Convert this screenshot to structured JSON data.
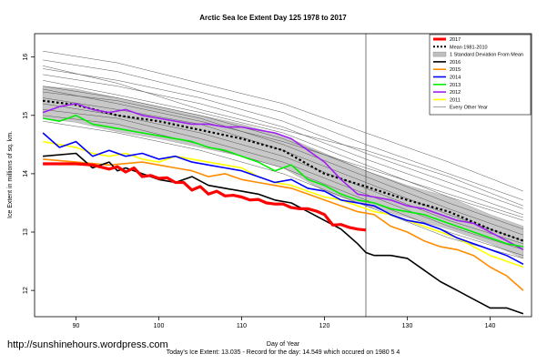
{
  "watermark": "http://sunshinehours.wordpress.com",
  "chart_data": {
    "type": "line",
    "title": "Arctic Sea Ice Extent Day 125 1978 to 2017",
    "xlabel": "Day of Year",
    "ylabel": "Ice Extent in millions of sq. km.",
    "footer": "Today's Ice Extent: 13.035 - Record for the day: 14.549 which occured on 1980 5 4",
    "xlim": [
      85,
      145
    ],
    "ylim": [
      11.55,
      16.4
    ],
    "xticks": [
      90,
      100,
      110,
      120,
      130,
      140
    ],
    "yticks": [
      12,
      13,
      14,
      15,
      16
    ],
    "vline_x": 125,
    "grid": false,
    "legend_position": "top-right",
    "legend": [
      {
        "label": "2017",
        "color": "#ff0000",
        "style": "thick"
      },
      {
        "label": "Mean 1981-2010",
        "color": "#000000",
        "style": "dotted"
      },
      {
        "label": "1 Standard Deviation From Mean",
        "color": "#bebebe",
        "style": "fill"
      },
      {
        "label": "2016",
        "color": "#000000",
        "style": "solid"
      },
      {
        "label": "2015",
        "color": "#ff8c00",
        "style": "solid"
      },
      {
        "label": "2014",
        "color": "#0000ff",
        "style": "solid"
      },
      {
        "label": "2013",
        "color": "#00ee00",
        "style": "solid"
      },
      {
        "label": "2012",
        "color": "#a020f0",
        "style": "solid"
      },
      {
        "label": "2011",
        "color": "#ffff00",
        "style": "solid"
      },
      {
        "label": "Every Other Year",
        "color": "#666666",
        "style": "thin"
      }
    ],
    "mean": {
      "x": [
        86,
        90,
        95,
        100,
        105,
        110,
        115,
        120,
        125,
        130,
        135,
        140,
        144
      ],
      "y": [
        15.25,
        15.18,
        15.0,
        14.9,
        14.75,
        14.6,
        14.4,
        14.0,
        13.78,
        13.55,
        13.35,
        13.05,
        12.85
      ]
    },
    "band": {
      "x": [
        86,
        90,
        95,
        100,
        105,
        110,
        115,
        120,
        125,
        130,
        135,
        140,
        144
      ],
      "upper": [
        15.5,
        15.45,
        15.3,
        15.15,
        15.0,
        14.85,
        14.65,
        14.35,
        14.05,
        13.8,
        13.6,
        13.3,
        13.1
      ],
      "lower": [
        14.95,
        14.88,
        14.72,
        14.6,
        14.45,
        14.3,
        14.1,
        13.7,
        13.45,
        13.25,
        13.05,
        12.8,
        12.55
      ]
    },
    "series": [
      {
        "name": "2017",
        "color": "#ff0000",
        "width": 3.2,
        "x": [
          86,
          88,
          90,
          92,
          94,
          95,
          96,
          97,
          98,
          99,
          100,
          101,
          102,
          103,
          104,
          105,
          106,
          107,
          108,
          109,
          110,
          111,
          112,
          113,
          114,
          115,
          116,
          117,
          118,
          119,
          120,
          121,
          122,
          123,
          124,
          125
        ],
        "y": [
          14.17,
          14.17,
          14.17,
          14.15,
          14.08,
          14.12,
          14.03,
          14.1,
          13.95,
          13.97,
          13.92,
          13.93,
          13.85,
          13.85,
          13.72,
          13.78,
          13.65,
          13.7,
          13.62,
          13.63,
          13.6,
          13.55,
          13.56,
          13.5,
          13.48,
          13.48,
          13.42,
          13.4,
          13.4,
          13.36,
          13.3,
          13.12,
          13.13,
          13.08,
          13.05,
          13.035
        ]
      },
      {
        "name": "2016",
        "color": "#000000",
        "width": 1.6,
        "x": [
          86,
          90,
          92,
          94,
          95,
          96,
          98,
          100,
          102,
          104,
          106,
          108,
          110,
          112,
          114,
          116,
          118,
          120,
          122,
          124,
          125,
          126,
          128,
          130,
          132,
          134,
          136,
          138,
          140,
          142,
          144
        ],
        "y": [
          14.3,
          14.35,
          14.1,
          14.2,
          14.05,
          14.1,
          14.0,
          13.9,
          13.85,
          13.95,
          13.8,
          13.75,
          13.7,
          13.65,
          13.55,
          13.5,
          13.35,
          13.2,
          13.05,
          12.8,
          12.65,
          12.6,
          12.6,
          12.55,
          12.35,
          12.15,
          12.0,
          11.85,
          11.7,
          11.7,
          11.6
        ]
      },
      {
        "name": "2015",
        "color": "#ff8c00",
        "width": 1.6,
        "x": [
          86,
          90,
          94,
          98,
          100,
          102,
          104,
          106,
          108,
          110,
          112,
          114,
          116,
          118,
          120,
          122,
          124,
          126,
          128,
          130,
          132,
          134,
          136,
          138,
          140,
          142,
          144
        ],
        "y": [
          14.25,
          14.2,
          14.15,
          14.2,
          14.15,
          14.1,
          14.05,
          13.95,
          14.0,
          13.9,
          13.85,
          13.8,
          13.75,
          13.65,
          13.55,
          13.45,
          13.35,
          13.3,
          13.1,
          13.0,
          12.85,
          12.75,
          12.7,
          12.6,
          12.4,
          12.25,
          12.0
        ]
      },
      {
        "name": "2014",
        "color": "#0000ff",
        "width": 1.6,
        "x": [
          86,
          88,
          90,
          92,
          94,
          96,
          98,
          100,
          102,
          104,
          106,
          108,
          110,
          112,
          114,
          116,
          118,
          120,
          122,
          124,
          126,
          128,
          130,
          132,
          134,
          136,
          138,
          140,
          142,
          144
        ],
        "y": [
          14.7,
          14.45,
          14.55,
          14.3,
          14.4,
          14.3,
          14.35,
          14.25,
          14.3,
          14.2,
          14.15,
          14.1,
          14.05,
          13.95,
          13.85,
          13.9,
          13.75,
          13.7,
          13.55,
          13.5,
          13.45,
          13.3,
          13.2,
          13.15,
          13.05,
          12.9,
          12.8,
          12.7,
          12.6,
          12.45
        ]
      },
      {
        "name": "2013",
        "color": "#00ee00",
        "width": 1.6,
        "x": [
          86,
          88,
          90,
          92,
          94,
          96,
          98,
          100,
          102,
          104,
          106,
          108,
          110,
          112,
          114,
          116,
          118,
          120,
          122,
          124,
          126,
          128,
          130,
          132,
          134,
          136,
          138,
          140,
          142,
          144
        ],
        "y": [
          14.95,
          14.9,
          15.0,
          14.85,
          14.8,
          14.75,
          14.7,
          14.65,
          14.6,
          14.55,
          14.45,
          14.4,
          14.3,
          14.2,
          14.05,
          14.15,
          13.9,
          13.8,
          13.65,
          13.55,
          13.5,
          13.4,
          13.35,
          13.3,
          13.2,
          13.1,
          13.0,
          12.9,
          12.8,
          12.75
        ]
      },
      {
        "name": "2012",
        "color": "#a020f0",
        "width": 1.6,
        "x": [
          86,
          88,
          90,
          92,
          94,
          96,
          98,
          100,
          102,
          104,
          106,
          108,
          110,
          112,
          114,
          116,
          118,
          120,
          122,
          124,
          126,
          128,
          130,
          132,
          134,
          136,
          138,
          140,
          142,
          144
        ],
        "y": [
          15.05,
          15.15,
          15.2,
          15.1,
          15.05,
          15.1,
          15.0,
          14.95,
          14.9,
          14.85,
          14.85,
          14.8,
          14.8,
          14.75,
          14.7,
          14.6,
          14.4,
          14.2,
          13.9,
          13.65,
          13.6,
          13.55,
          13.45,
          13.4,
          13.3,
          13.2,
          13.15,
          13.0,
          12.85,
          12.7
        ]
      },
      {
        "name": "2011",
        "color": "#ffff00",
        "width": 1.6,
        "x": [
          86,
          88,
          90,
          92,
          94,
          96,
          98,
          100,
          102,
          104,
          106,
          108,
          110,
          112,
          114,
          116,
          118,
          120,
          122,
          124,
          126,
          128,
          130,
          132,
          134,
          136,
          138,
          140,
          142,
          144
        ],
        "y": [
          14.55,
          14.5,
          14.45,
          14.35,
          14.3,
          14.35,
          14.25,
          14.2,
          14.3,
          14.25,
          14.2,
          14.15,
          14.1,
          13.95,
          13.85,
          13.8,
          13.7,
          13.6,
          13.55,
          13.45,
          13.35,
          13.3,
          13.2,
          13.1,
          13.0,
          12.9,
          12.75,
          12.6,
          12.5,
          12.4
        ]
      }
    ],
    "other_years": [
      {
        "x": [
          86,
          95,
          105,
          115,
          125,
          135,
          144
        ],
        "y": [
          16.1,
          15.9,
          15.55,
          15.2,
          14.7,
          14.2,
          13.7
        ]
      },
      {
        "x": [
          86,
          95,
          105,
          115,
          125,
          135,
          144
        ],
        "y": [
          15.95,
          15.75,
          15.4,
          15.05,
          14.5,
          14.0,
          13.55
        ]
      },
      {
        "x": [
          86,
          95,
          105,
          115,
          125,
          135,
          144
        ],
        "y": [
          15.8,
          15.6,
          15.3,
          14.9,
          14.35,
          13.85,
          13.4
        ]
      },
      {
        "x": [
          86,
          95,
          105,
          115,
          125,
          135,
          144
        ],
        "y": [
          15.7,
          15.5,
          15.2,
          14.8,
          14.25,
          13.75,
          13.3
        ]
      },
      {
        "x": [
          86,
          95,
          105,
          115,
          125,
          135,
          144
        ],
        "y": [
          15.6,
          15.35,
          15.05,
          14.7,
          14.15,
          13.6,
          13.2
        ]
      },
      {
        "x": [
          86,
          95,
          105,
          115,
          125,
          135,
          144
        ],
        "y": [
          15.5,
          15.3,
          15.0,
          14.6,
          14.05,
          13.5,
          13.05
        ]
      },
      {
        "x": [
          86,
          95,
          105,
          115,
          125,
          135,
          144
        ],
        "y": [
          15.4,
          15.25,
          14.95,
          14.5,
          13.95,
          13.4,
          12.95
        ]
      },
      {
        "x": [
          86,
          95,
          105,
          115,
          125,
          135,
          144
        ],
        "y": [
          15.3,
          15.1,
          14.85,
          14.4,
          13.85,
          13.3,
          12.85
        ]
      },
      {
        "x": [
          86,
          95,
          105,
          115,
          125,
          135,
          144
        ],
        "y": [
          15.2,
          15.0,
          14.7,
          14.3,
          13.75,
          13.2,
          12.8
        ]
      },
      {
        "x": [
          86,
          95,
          105,
          115,
          125,
          135,
          144
        ],
        "y": [
          15.1,
          14.95,
          14.6,
          14.2,
          13.65,
          13.1,
          12.7
        ]
      },
      {
        "x": [
          86,
          95,
          105,
          115,
          125,
          135,
          144
        ],
        "y": [
          15.0,
          14.85,
          14.5,
          14.1,
          13.55,
          13.0,
          12.6
        ]
      },
      {
        "x": [
          86,
          95,
          105,
          115,
          125,
          135,
          144
        ],
        "y": [
          14.9,
          14.7,
          14.4,
          14.0,
          13.45,
          12.9,
          12.55
        ]
      },
      {
        "x": [
          86,
          95,
          105,
          115,
          125,
          135,
          144
        ],
        "y": [
          15.45,
          15.2,
          14.9,
          14.55,
          14.1,
          13.65,
          13.25
        ]
      },
      {
        "x": [
          86,
          95,
          105,
          115,
          125,
          135,
          144
        ],
        "y": [
          15.85,
          15.55,
          15.1,
          14.75,
          14.4,
          13.95,
          13.45
        ]
      }
    ]
  }
}
